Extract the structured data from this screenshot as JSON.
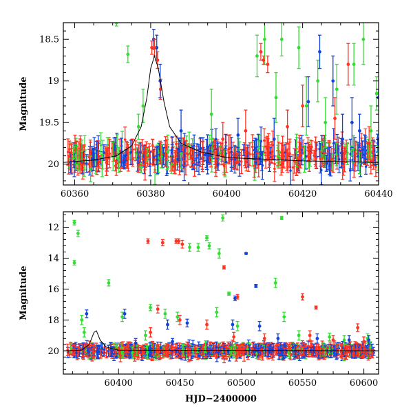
{
  "colors": {
    "green": "#33dd33",
    "blue": "#1144dd",
    "red": "#ff3322",
    "frame": "#000000",
    "model": "#000000"
  },
  "chart_data": [
    {
      "type": "scatter",
      "panel": "top",
      "title": "",
      "xlabel": "",
      "ylabel": "Magnitude",
      "xlim": [
        60357,
        60440
      ],
      "ylim": [
        20.25,
        18.3
      ],
      "y_inverted": true,
      "xticks": [
        {
          "value": 60360,
          "label": "60360"
        },
        {
          "value": 60380,
          "label": "60380"
        },
        {
          "value": 60400,
          "label": "60400"
        },
        {
          "value": 60420,
          "label": "60420"
        },
        {
          "value": 60440,
          "label": "60440"
        }
      ],
      "yticks": [
        {
          "value": 18.5,
          "label": "18.5"
        },
        {
          "value": 19.0,
          "label": "19"
        },
        {
          "value": 19.5,
          "label": "19.5"
        },
        {
          "value": 20.0,
          "label": "20"
        }
      ],
      "series": [
        {
          "color": "green",
          "points": [
            {
              "x": 60371.0,
              "y": 18.3,
              "err": 0.04
            },
            {
              "x": 60374.0,
              "y": 18.68,
              "err": 0.1
            },
            {
              "x": 60376.8,
              "y": 19.55,
              "err": 0.15
            },
            {
              "x": 60378.0,
              "y": 19.3,
              "err": 0.2
            },
            {
              "x": 60384.5,
              "y": 19.85,
              "err": 0.2
            },
            {
              "x": 60396.0,
              "y": 19.4,
              "err": 0.3
            },
            {
              "x": 60408.0,
              "y": 18.7,
              "err": 0.25
            },
            {
              "x": 60410.0,
              "y": 18.5,
              "err": 0.3
            },
            {
              "x": 60413.0,
              "y": 19.2,
              "err": 0.3
            },
            {
              "x": 60414.5,
              "y": 18.5,
              "err": 0.2
            },
            {
              "x": 60419.0,
              "y": 18.6,
              "err": 0.25
            },
            {
              "x": 60421.0,
              "y": 19.3,
              "err": 0.35
            },
            {
              "x": 60424.0,
              "y": 19.0,
              "err": 0.25
            },
            {
              "x": 60426.0,
              "y": 19.5,
              "err": 0.3
            },
            {
              "x": 60429.0,
              "y": 19.1,
              "err": 0.3
            },
            {
              "x": 60433.5,
              "y": 18.8,
              "err": 0.25
            },
            {
              "x": 60436.0,
              "y": 18.5,
              "err": 0.3
            },
            {
              "x": 60438.0,
              "y": 19.6,
              "err": 0.3
            },
            {
              "x": 60439.5,
              "y": 19.15,
              "err": 0.2
            }
          ]
        },
        {
          "color": "blue",
          "points": [
            {
              "x": 60380.8,
              "y": 18.5,
              "err": 0.12
            },
            {
              "x": 60381.6,
              "y": 18.6,
              "err": 0.15
            },
            {
              "x": 60382.5,
              "y": 19.0,
              "err": 0.2
            },
            {
              "x": 60388.0,
              "y": 19.6,
              "err": 0.25
            },
            {
              "x": 60403.0,
              "y": 19.65,
              "err": 0.2
            },
            {
              "x": 60412.5,
              "y": 19.7,
              "err": 0.25
            },
            {
              "x": 60421.5,
              "y": 19.25,
              "err": 0.3
            },
            {
              "x": 60424.5,
              "y": 18.65,
              "err": 0.2
            },
            {
              "x": 60428.0,
              "y": 19.0,
              "err": 0.3
            },
            {
              "x": 60430.5,
              "y": 19.7,
              "err": 0.3
            },
            {
              "x": 60433.0,
              "y": 19.5,
              "err": 0.3
            },
            {
              "x": 60435.0,
              "y": 19.6,
              "err": 0.2
            },
            {
              "x": 60440.0,
              "y": 19.2,
              "err": 0.1
            }
          ]
        },
        {
          "color": "red",
          "points": [
            {
              "x": 60380.3,
              "y": 18.6,
              "err": 0.08
            },
            {
              "x": 60381.0,
              "y": 18.6,
              "err": 0.1
            },
            {
              "x": 60381.8,
              "y": 18.75,
              "err": 0.1
            },
            {
              "x": 60382.6,
              "y": 19.1,
              "err": 0.12
            },
            {
              "x": 60399.0,
              "y": 19.7,
              "err": 0.2
            },
            {
              "x": 60405.0,
              "y": 19.6,
              "err": 0.25
            },
            {
              "x": 60409.0,
              "y": 18.65,
              "err": 0.1
            },
            {
              "x": 60409.7,
              "y": 18.75,
              "err": 0.05
            },
            {
              "x": 60410.8,
              "y": 18.8,
              "err": 0.1
            },
            {
              "x": 60416.0,
              "y": 19.55,
              "err": 0.2
            },
            {
              "x": 60420.0,
              "y": 19.3,
              "err": 0.25
            },
            {
              "x": 60428.5,
              "y": 19.45,
              "err": 0.25
            },
            {
              "x": 60432.0,
              "y": 18.8,
              "err": 0.25
            },
            {
              "x": 60437.5,
              "y": 19.75,
              "err": 0.2
            }
          ]
        }
      ],
      "model_curve": {
        "color": "model",
        "points": [
          {
            "x": 60357,
            "y": 19.98
          },
          {
            "x": 60365,
            "y": 19.95
          },
          {
            "x": 60371,
            "y": 19.9
          },
          {
            "x": 60375,
            "y": 19.78
          },
          {
            "x": 60377.5,
            "y": 19.55
          },
          {
            "x": 60379,
            "y": 19.2
          },
          {
            "x": 60380,
            "y": 18.85
          },
          {
            "x": 60381,
            "y": 18.7
          },
          {
            "x": 60382,
            "y": 18.85
          },
          {
            "x": 60383.5,
            "y": 19.25
          },
          {
            "x": 60385,
            "y": 19.55
          },
          {
            "x": 60388,
            "y": 19.75
          },
          {
            "x": 60393,
            "y": 19.85
          },
          {
            "x": 60400,
            "y": 19.92
          },
          {
            "x": 60420,
            "y": 19.96
          },
          {
            "x": 60440,
            "y": 19.98
          }
        ]
      },
      "dense_band": {
        "description": "dense bulk of measurements; individual points too crowded to read",
        "x_range": [
          60358,
          60440
        ],
        "y_center": 19.9,
        "y_spread": 0.2,
        "err_typical": 0.12
      }
    },
    {
      "type": "scatter",
      "panel": "bottom",
      "title": "",
      "xlabel": "HJD−2400000",
      "ylabel": "Magnitude",
      "xlim": [
        60355,
        60612
      ],
      "ylim": [
        21.5,
        11.0
      ],
      "y_inverted": true,
      "xticks": [
        {
          "value": 60400,
          "label": "60400"
        },
        {
          "value": 60450,
          "label": "60450"
        },
        {
          "value": 60500,
          "label": "60500"
        },
        {
          "value": 60550,
          "label": "60550"
        },
        {
          "value": 60600,
          "label": "60600"
        }
      ],
      "yticks": [
        {
          "value": 12,
          "label": "12"
        },
        {
          "value": 14,
          "label": "14"
        },
        {
          "value": 16,
          "label": "16"
        },
        {
          "value": 18,
          "label": "18"
        },
        {
          "value": 20,
          "label": "20"
        }
      ],
      "series": [
        {
          "color": "green",
          "points": [
            {
              "x": 60364,
              "y": 11.7,
              "err": 0.15
            },
            {
              "x": 60367,
              "y": 12.4,
              "err": 0.2
            },
            {
              "x": 60364,
              "y": 14.3,
              "err": 0.15
            },
            {
              "x": 60370,
              "y": 18.0,
              "err": 0.3
            },
            {
              "x": 60372,
              "y": 18.8,
              "err": 0.3
            },
            {
              "x": 60392,
              "y": 15.6,
              "err": 0.2
            },
            {
              "x": 60403,
              "y": 17.8,
              "err": 0.3
            },
            {
              "x": 60422,
              "y": 19.0,
              "err": 0.3
            },
            {
              "x": 60426,
              "y": 17.2,
              "err": 0.2
            },
            {
              "x": 60438,
              "y": 17.6,
              "err": 0.3
            },
            {
              "x": 60448,
              "y": 17.8,
              "err": 0.3
            },
            {
              "x": 60458,
              "y": 13.3,
              "err": 0.25
            },
            {
              "x": 60465,
              "y": 13.3,
              "err": 0.25
            },
            {
              "x": 60472,
              "y": 12.7,
              "err": 0.15
            },
            {
              "x": 60474,
              "y": 13.2,
              "err": 0.2
            },
            {
              "x": 60480,
              "y": 17.5,
              "err": 0.3
            },
            {
              "x": 60482,
              "y": 13.7,
              "err": 0.3
            },
            {
              "x": 60485,
              "y": 11.4,
              "err": 0.2
            },
            {
              "x": 60490,
              "y": 16.3,
              "err": 0.1
            },
            {
              "x": 60497,
              "y": 18.4,
              "err": 0.3
            },
            {
              "x": 60528,
              "y": 15.6,
              "err": 0.3
            },
            {
              "x": 60533,
              "y": 11.4,
              "err": 0.1
            },
            {
              "x": 60535,
              "y": 17.8,
              "err": 0.3
            },
            {
              "x": 60547,
              "y": 19.0,
              "err": 0.3
            },
            {
              "x": 60572,
              "y": 19.1,
              "err": 0.25
            },
            {
              "x": 60584,
              "y": 19.3,
              "err": 0.3
            },
            {
              "x": 60603,
              "y": 19.2,
              "err": 0.3
            }
          ]
        },
        {
          "color": "blue",
          "points": [
            {
              "x": 60374,
              "y": 17.6,
              "err": 0.25
            },
            {
              "x": 60405,
              "y": 17.6,
              "err": 0.3
            },
            {
              "x": 60414,
              "y": 19.5,
              "err": 0.3
            },
            {
              "x": 60440,
              "y": 18.3,
              "err": 0.3
            },
            {
              "x": 60444,
              "y": 19.4,
              "err": 0.2
            },
            {
              "x": 60456,
              "y": 18.2,
              "err": 0.25
            },
            {
              "x": 60493,
              "y": 18.3,
              "err": 0.3
            },
            {
              "x": 60495,
              "y": 16.6,
              "err": 0.15
            },
            {
              "x": 60504,
              "y": 13.7,
              "err": 0.05
            },
            {
              "x": 60512,
              "y": 15.8,
              "err": 0.1
            },
            {
              "x": 60515,
              "y": 18.4,
              "err": 0.3
            },
            {
              "x": 60530,
              "y": 19.2,
              "err": 0.3
            },
            {
              "x": 60562,
              "y": 19.2,
              "err": 0.3
            },
            {
              "x": 60588,
              "y": 19.3,
              "err": 0.3
            },
            {
              "x": 60604,
              "y": 19.3,
              "err": 0.3
            }
          ]
        },
        {
          "color": "red",
          "points": [
            {
              "x": 60424,
              "y": 12.9,
              "err": 0.15
            },
            {
              "x": 60436,
              "y": 13.0,
              "err": 0.2
            },
            {
              "x": 60447,
              "y": 12.9,
              "err": 0.15
            },
            {
              "x": 60449,
              "y": 12.9,
              "err": 0.15
            },
            {
              "x": 60452,
              "y": 13.1,
              "err": 0.25
            },
            {
              "x": 60426,
              "y": 18.8,
              "err": 0.3
            },
            {
              "x": 60432,
              "y": 17.3,
              "err": 0.25
            },
            {
              "x": 60450,
              "y": 18.0,
              "err": 0.3
            },
            {
              "x": 60472,
              "y": 18.3,
              "err": 0.3
            },
            {
              "x": 60486,
              "y": 14.6,
              "err": 0.1
            },
            {
              "x": 60494,
              "y": 19.1,
              "err": 0.3
            },
            {
              "x": 60497,
              "y": 16.5,
              "err": 0.15
            },
            {
              "x": 60519,
              "y": 19.2,
              "err": 0.3
            },
            {
              "x": 60550,
              "y": 16.5,
              "err": 0.2
            },
            {
              "x": 60556,
              "y": 19.0,
              "err": 0.3
            },
            {
              "x": 60561,
              "y": 17.2,
              "err": 0.1
            },
            {
              "x": 60575,
              "y": 19.3,
              "err": 0.3
            },
            {
              "x": 60595,
              "y": 18.5,
              "err": 0.25
            },
            {
              "x": 60600,
              "y": 19.4,
              "err": 0.3
            }
          ]
        }
      ],
      "model_curve": {
        "color": "model",
        "points": [
          {
            "x": 60355,
            "y": 20.0
          },
          {
            "x": 60370,
            "y": 19.95
          },
          {
            "x": 60376,
            "y": 19.6
          },
          {
            "x": 60380,
            "y": 18.8
          },
          {
            "x": 60382,
            "y": 18.7
          },
          {
            "x": 60385,
            "y": 19.3
          },
          {
            "x": 60390,
            "y": 19.75
          },
          {
            "x": 60400,
            "y": 19.95
          },
          {
            "x": 60612,
            "y": 20.0
          }
        ]
      },
      "dense_band": {
        "description": "dense bulk of measurements; individual points too crowded to read",
        "x_range": [
          60358,
          60608
        ],
        "y_center": 20.0,
        "y_spread": 0.35,
        "err_typical": 0.3
      }
    }
  ]
}
